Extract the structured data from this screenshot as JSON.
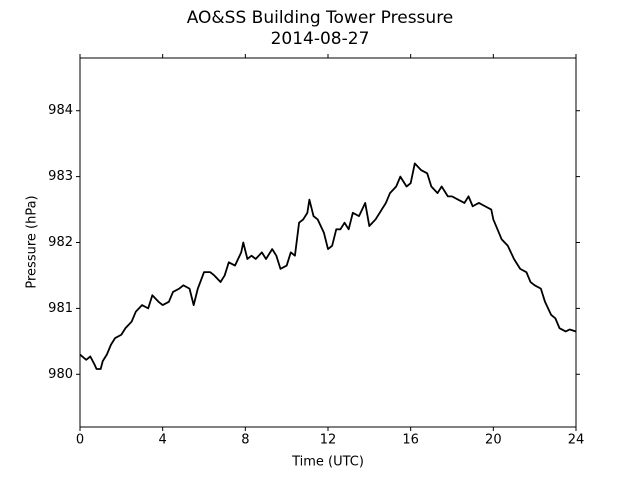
{
  "chart_data": {
    "type": "line",
    "title": "AO&SS Building Tower Pressure",
    "subtitle": "2014-08-27",
    "x_label": "Time (UTC)",
    "y_label": "Pressure (hPa)",
    "xlim": [
      0,
      24
    ],
    "xticks": [
      0,
      4,
      8,
      12,
      16,
      20,
      24
    ],
    "ylim": [
      979.2,
      984.8
    ],
    "yticks": [
      980,
      981,
      982,
      983,
      984
    ],
    "grid": false,
    "series": [
      {
        "name": "Pressure",
        "color": "#000000",
        "x": [
          0,
          0.3,
          0.5,
          0.7,
          0.8,
          1.0,
          1.1,
          1.3,
          1.5,
          1.7,
          2.0,
          2.2,
          2.5,
          2.7,
          3.0,
          3.3,
          3.5,
          3.8,
          4.0,
          4.3,
          4.5,
          4.8,
          5.0,
          5.3,
          5.5,
          5.7,
          6.0,
          6.3,
          6.5,
          6.8,
          7.0,
          7.2,
          7.5,
          7.8,
          7.9,
          8.1,
          8.3,
          8.5,
          8.8,
          9.0,
          9.3,
          9.5,
          9.7,
          10.0,
          10.2,
          10.4,
          10.6,
          10.8,
          11.0,
          11.1,
          11.3,
          11.5,
          11.8,
          12.0,
          12.2,
          12.4,
          12.6,
          12.8,
          13.0,
          13.2,
          13.5,
          13.8,
          14.0,
          14.3,
          14.6,
          14.8,
          15.0,
          15.3,
          15.5,
          15.8,
          16.0,
          16.2,
          16.5,
          16.8,
          17.0,
          17.3,
          17.5,
          17.8,
          18.0,
          18.3,
          18.6,
          18.8,
          19.0,
          19.3,
          19.6,
          19.9,
          20.0,
          20.2,
          20.4,
          20.7,
          21.0,
          21.3,
          21.6,
          21.8,
          22.0,
          22.3,
          22.5,
          22.8,
          23.0,
          23.2,
          23.5,
          23.7,
          24.0
        ],
        "values": [
          980.3,
          980.22,
          980.27,
          980.15,
          980.08,
          980.08,
          980.2,
          980.3,
          980.45,
          980.55,
          980.6,
          980.7,
          980.8,
          980.95,
          981.05,
          981.0,
          981.2,
          981.1,
          981.05,
          981.1,
          981.25,
          981.3,
          981.35,
          981.3,
          981.05,
          981.3,
          981.55,
          981.55,
          981.5,
          981.4,
          981.5,
          981.7,
          981.65,
          981.85,
          982.0,
          981.75,
          981.8,
          981.75,
          981.85,
          981.75,
          981.9,
          981.8,
          981.6,
          981.65,
          981.85,
          981.8,
          982.3,
          982.35,
          982.45,
          982.65,
          982.4,
          982.35,
          982.15,
          981.9,
          981.95,
          982.2,
          982.2,
          982.3,
          982.2,
          982.45,
          982.4,
          982.6,
          982.25,
          982.35,
          982.5,
          982.6,
          982.75,
          982.85,
          983.0,
          982.85,
          982.9,
          983.2,
          983.1,
          983.05,
          982.85,
          982.75,
          982.85,
          982.7,
          982.7,
          982.65,
          982.6,
          982.7,
          982.55,
          982.6,
          982.55,
          982.5,
          982.35,
          982.2,
          982.05,
          981.95,
          981.75,
          981.6,
          981.55,
          981.4,
          981.35,
          981.3,
          981.1,
          980.9,
          980.85,
          980.7,
          980.65,
          980.68,
          980.65
        ]
      }
    ]
  }
}
